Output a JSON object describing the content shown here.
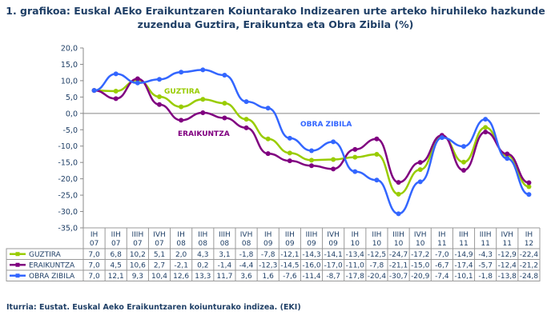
{
  "title_line1": "1. grafikoa: Euskal AEko Eraikuntzaren Koiuntarako Indizearen urte arteko hiruhileko hazkunde",
  "title_line2": "zuzendua Guztira, Eraikuntza eta Obra Zibila (%)",
  "source": "Iturria: Eustat. Euskal Aeko Eraikuntzaren koiunturako indizea. (EKI)",
  "chart_data": {
    "type": "line",
    "title": "1. grafikoa: Euskal AEko Eraikuntzaren Koiuntarako Indizearen urte arteko hiruhileko hazkunde zuzendua Guztira, Eraikuntza eta Obra Zibila (%)",
    "categories": [
      [
        "IH",
        "07"
      ],
      [
        "IIH",
        "07"
      ],
      [
        "IIIH",
        "07"
      ],
      [
        "IVH",
        "07"
      ],
      [
        "IH",
        "08"
      ],
      [
        "IIH",
        "08"
      ],
      [
        "IIIH",
        "08"
      ],
      [
        "IVH",
        "08"
      ],
      [
        "IH",
        "09"
      ],
      [
        "IIH",
        "09"
      ],
      [
        "IIIH",
        "09"
      ],
      [
        "IVH",
        "09"
      ],
      [
        "IH",
        "10"
      ],
      [
        "IIH",
        "10"
      ],
      [
        "IIIH",
        "10"
      ],
      [
        "IVH",
        "10"
      ],
      [
        "IH",
        "11"
      ],
      [
        "IIH",
        "11"
      ],
      [
        "IIIH",
        "11"
      ],
      [
        "IVH",
        "11"
      ],
      [
        "IH",
        "12"
      ]
    ],
    "ylim": [
      -35,
      20
    ],
    "yticks": [
      "20,0",
      "15,0",
      "10,0",
      "5,0",
      "0,0",
      "-5,0",
      "-10,0",
      "-15,0",
      "-20,0",
      "-25,0",
      "-30,0",
      "-35,0"
    ],
    "grid": false,
    "legend": "data-table",
    "series": [
      {
        "name": "GUZTIRA",
        "label": "GUZTIRA",
        "color": "#99cc00",
        "values": [
          7.0,
          6.8,
          10.2,
          5.1,
          2.0,
          4.3,
          3.1,
          -1.8,
          -7.8,
          -12.1,
          -14.3,
          -14.1,
          -13.4,
          -12.5,
          -24.7,
          -17.2,
          -7.0,
          -14.9,
          -4.3,
          -12.9,
          -22.4
        ]
      },
      {
        "name": "ERAIKUNTZA",
        "label": "ERAIKUNTZA",
        "color": "#800080",
        "values": [
          7.0,
          4.5,
          10.6,
          2.7,
          -2.1,
          0.2,
          -1.4,
          -4.4,
          -12.3,
          -14.5,
          -16.0,
          -17.0,
          -11.0,
          -7.8,
          -21.1,
          -15.0,
          -6.7,
          -17.4,
          -5.7,
          -12.4,
          -21.2
        ]
      },
      {
        "name": "OBRA ZIBILA",
        "label": "OBRA ZIBILA",
        "color": "#3366ff",
        "values": [
          7.0,
          12.1,
          9.3,
          10.4,
          12.6,
          13.3,
          11.7,
          3.6,
          1.6,
          -7.6,
          -11.4,
          -8.7,
          -17.8,
          -20.4,
          -30.7,
          -20.9,
          -7.4,
          -10.1,
          -1.8,
          -13.8,
          -24.8
        ]
      }
    ]
  }
}
